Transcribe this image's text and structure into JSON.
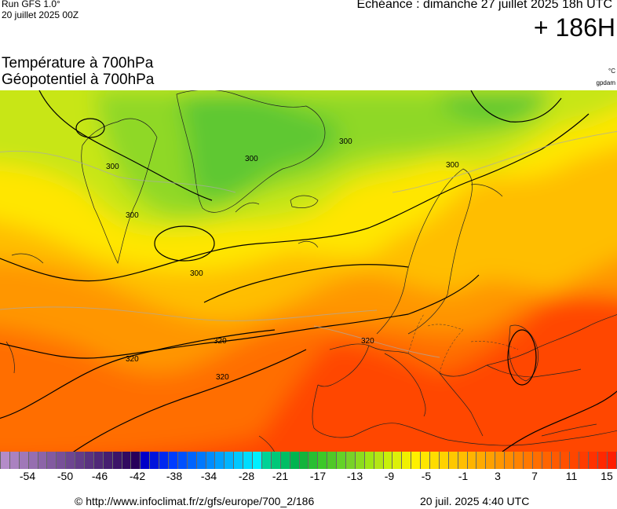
{
  "header": {
    "run": "Run GFS 1.0°",
    "run_date": "20 juillet 2025 00Z",
    "echeance": "Echéance : dimanche 27 juillet 2025 18h UTC",
    "lead_time": "+ 186H"
  },
  "titles": {
    "line1": "Température à 700hPa",
    "line2": "Géopotentiel à 700hPa",
    "unit_temp": "°C",
    "unit_geo": "gpdam"
  },
  "map": {
    "field_colors": {
      "cold_green": "#5fc832",
      "green": "#8fd828",
      "lime": "#c8e614",
      "yellow": "#ffe600",
      "light_orange": "#ffbe00",
      "orange": "#ff9600",
      "deep_orange": "#ff6e00",
      "red_orange": "#ff4600"
    },
    "contour_labels": [
      "300",
      "300",
      "300",
      "300",
      "300",
      "300",
      "320",
      "320",
      "320",
      "320"
    ]
  },
  "scale": {
    "colors": [
      "#b48cc8",
      "#aa82c0",
      "#a078b8",
      "#966eb0",
      "#8c64a8",
      "#825aa0",
      "#785098",
      "#6e4690",
      "#643c88",
      "#5a3280",
      "#502878",
      "#461e70",
      "#3c1468",
      "#320a60",
      "#28005a",
      "#0000c8",
      "#0014dc",
      "#0028f0",
      "#003cff",
      "#0050ff",
      "#0064ff",
      "#0078ff",
      "#008cff",
      "#00a0ff",
      "#00b4ff",
      "#00c8ff",
      "#00dcff",
      "#00f0ff",
      "#00d296",
      "#00c878",
      "#00be64",
      "#00b450",
      "#14b43c",
      "#28be32",
      "#3cc828",
      "#50c828",
      "#64d228",
      "#78d228",
      "#8cdc1e",
      "#a0e614",
      "#b4e614",
      "#c8f00a",
      "#dcf00a",
      "#f0f000",
      "#fff000",
      "#ffe600",
      "#ffdc00",
      "#ffd200",
      "#ffc800",
      "#ffbe00",
      "#ffb400",
      "#ffaa00",
      "#ffa000",
      "#ff9600",
      "#ff8c00",
      "#ff8200",
      "#ff7800",
      "#ff6e00",
      "#ff6400",
      "#ff5a00",
      "#ff5000",
      "#ff4600",
      "#ff3c00",
      "#ff3200",
      "#ff2800",
      "#ff1e00"
    ],
    "ticks": [
      "-54",
      "-50",
      "-46",
      "-42",
      "-38",
      "-34",
      "-28",
      "-21",
      "-17",
      "-13",
      "-9",
      "-5",
      "-1",
      "3",
      "7",
      "11",
      "15"
    ]
  },
  "footer": {
    "credit": "© http://www.infoclimat.fr/z/gfs/europe/700_2/186",
    "timestamp": "20 juil. 2025  4:40 UTC"
  }
}
